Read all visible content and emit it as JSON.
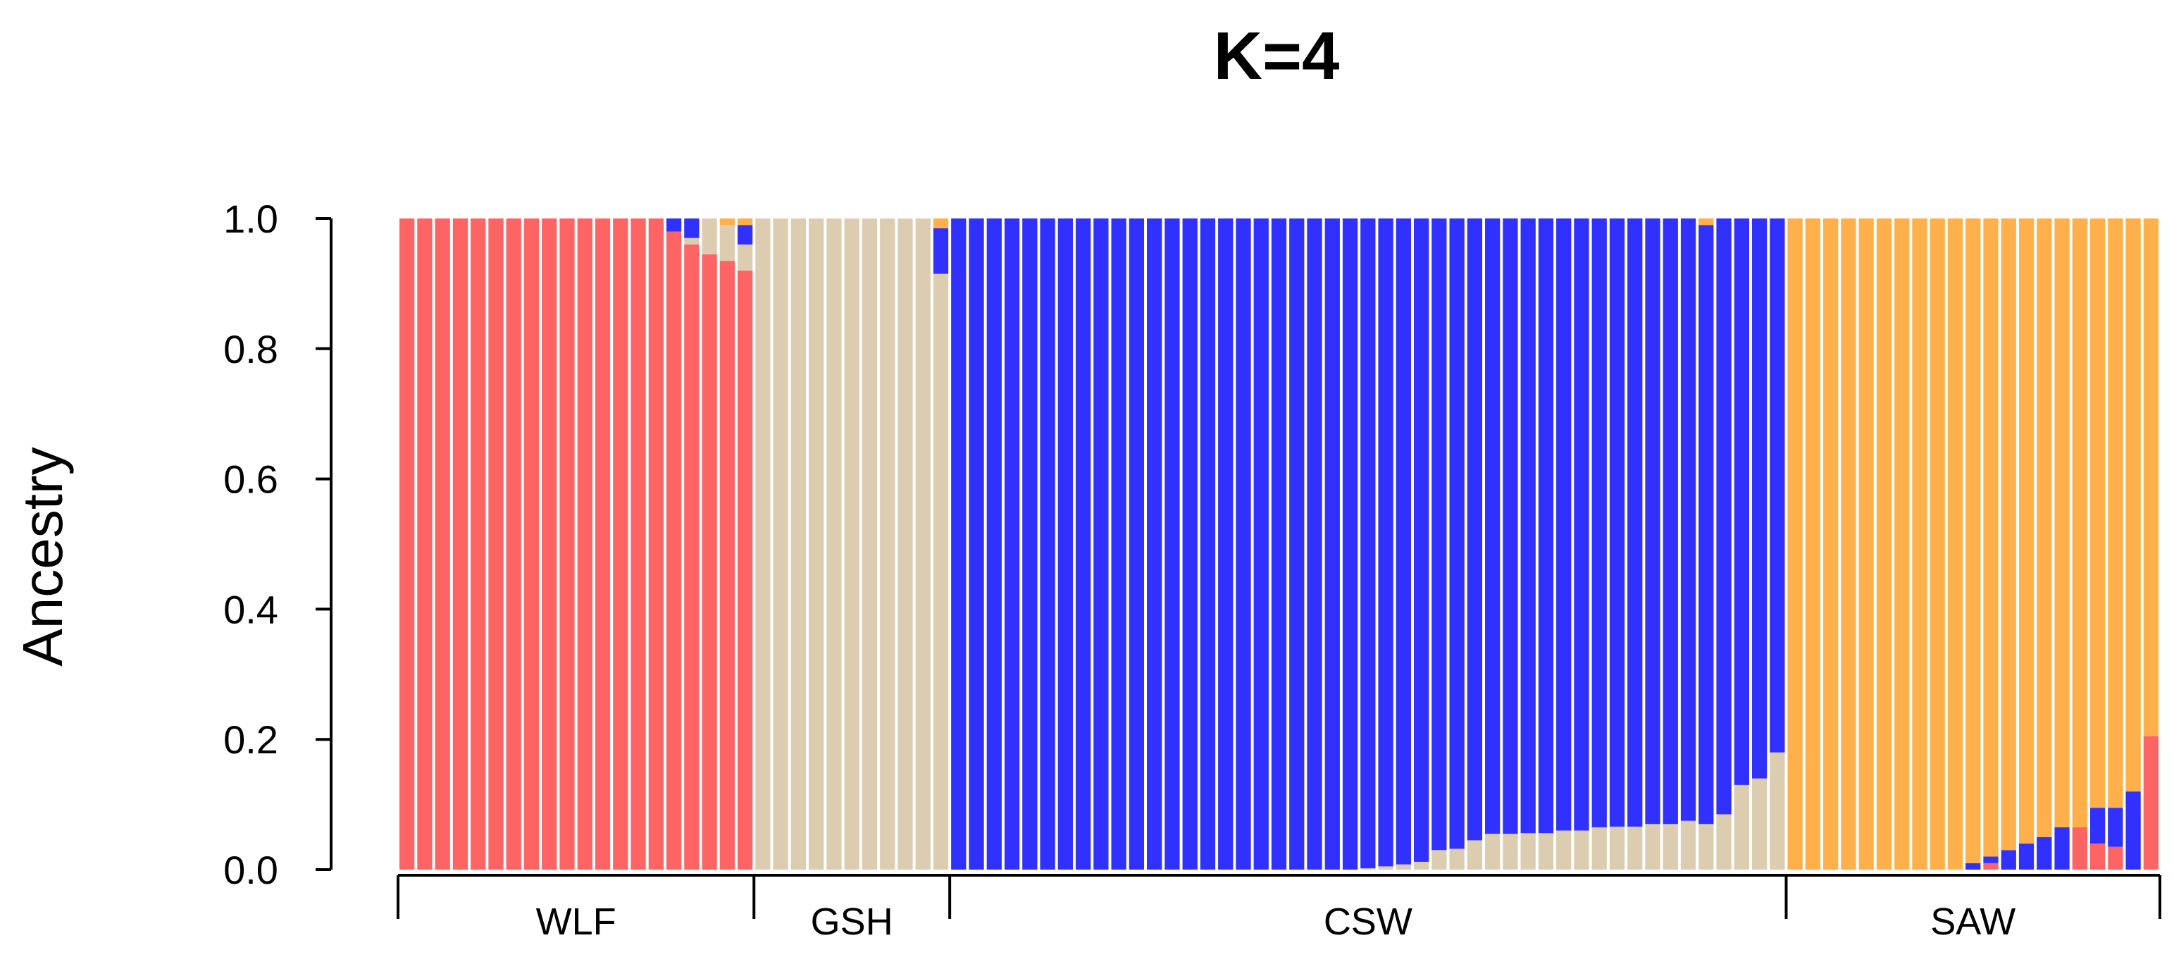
{
  "chart_data": {
    "type": "bar",
    "stacked": true,
    "title": "K=4",
    "xlabel": "",
    "ylabel": "Ancestry",
    "ylim": [
      0,
      1
    ],
    "yticks": [
      "0.0",
      "0.2",
      "0.4",
      "0.6",
      "0.8",
      "1.0"
    ],
    "grid": false,
    "legend": "none",
    "colors": {
      "red": "#FF6464",
      "tan": "#DCCDB1",
      "blue": "#3030FF",
      "orange": "#FFB04A"
    },
    "component_order": [
      "red",
      "tan",
      "blue",
      "orange"
    ],
    "groups": [
      {
        "label": "WLF",
        "individuals": [
          [
            1,
            0,
            0,
            0
          ],
          [
            1,
            0,
            0,
            0
          ],
          [
            1,
            0,
            0,
            0
          ],
          [
            1,
            0,
            0,
            0
          ],
          [
            1,
            0,
            0,
            0
          ],
          [
            1,
            0,
            0,
            0
          ],
          [
            1,
            0,
            0,
            0
          ],
          [
            1,
            0,
            0,
            0
          ],
          [
            1,
            0,
            0,
            0
          ],
          [
            1,
            0,
            0,
            0
          ],
          [
            1,
            0,
            0,
            0
          ],
          [
            1,
            0,
            0,
            0
          ],
          [
            1,
            0,
            0,
            0
          ],
          [
            1,
            0,
            0,
            0
          ],
          [
            1,
            0,
            0,
            0
          ],
          [
            0.98,
            0,
            0.02,
            0
          ],
          [
            0.96,
            0.01,
            0.03,
            0
          ],
          [
            0.945,
            0.055,
            0,
            0
          ],
          [
            0.935,
            0.055,
            0,
            0.01
          ],
          [
            0.92,
            0.04,
            0.03,
            0.01
          ]
        ]
      },
      {
        "label": "GSH",
        "individuals": [
          [
            0,
            1,
            0,
            0
          ],
          [
            0,
            1,
            0,
            0
          ],
          [
            0,
            1,
            0,
            0
          ],
          [
            0,
            1,
            0,
            0
          ],
          [
            0,
            1,
            0,
            0
          ],
          [
            0,
            1,
            0,
            0
          ],
          [
            0,
            1,
            0,
            0
          ],
          [
            0,
            1,
            0,
            0
          ],
          [
            0,
            1,
            0,
            0
          ],
          [
            0,
            1,
            0,
            0
          ],
          [
            0,
            0.915,
            0.07,
            0.015
          ]
        ]
      },
      {
        "label": "CSW",
        "individuals": [
          [
            0,
            0,
            1,
            0
          ],
          [
            0,
            0,
            1,
            0
          ],
          [
            0,
            0,
            1,
            0
          ],
          [
            0,
            0,
            1,
            0
          ],
          [
            0,
            0,
            1,
            0
          ],
          [
            0,
            0,
            1,
            0
          ],
          [
            0,
            0,
            1,
            0
          ],
          [
            0,
            0,
            1,
            0
          ],
          [
            0,
            0,
            1,
            0
          ],
          [
            0,
            0,
            1,
            0
          ],
          [
            0,
            0,
            1,
            0
          ],
          [
            0,
            0,
            1,
            0
          ],
          [
            0,
            0,
            1,
            0
          ],
          [
            0,
            0,
            1,
            0
          ],
          [
            0,
            0,
            1,
            0
          ],
          [
            0,
            0,
            1,
            0
          ],
          [
            0,
            0,
            1,
            0
          ],
          [
            0,
            0,
            1,
            0
          ],
          [
            0,
            0,
            1,
            0
          ],
          [
            0,
            0,
            1,
            0
          ],
          [
            0,
            0,
            1,
            0
          ],
          [
            0,
            0,
            1,
            0
          ],
          [
            0,
            0,
            1,
            0
          ],
          [
            0,
            0.002,
            0.998,
            0
          ],
          [
            0,
            0.005,
            0.995,
            0
          ],
          [
            0,
            0.008,
            0.992,
            0
          ],
          [
            0,
            0.012,
            0.988,
            0
          ],
          [
            0,
            0.03,
            0.97,
            0
          ],
          [
            0,
            0.032,
            0.968,
            0
          ],
          [
            0,
            0.045,
            0.955,
            0
          ],
          [
            0,
            0.055,
            0.945,
            0
          ],
          [
            0,
            0.055,
            0.945,
            0
          ],
          [
            0,
            0.056,
            0.944,
            0
          ],
          [
            0,
            0.056,
            0.944,
            0
          ],
          [
            0,
            0.06,
            0.94,
            0
          ],
          [
            0,
            0.06,
            0.94,
            0
          ],
          [
            0,
            0.065,
            0.935,
            0
          ],
          [
            0,
            0.066,
            0.934,
            0
          ],
          [
            0,
            0.066,
            0.934,
            0
          ],
          [
            0,
            0.07,
            0.93,
            0
          ],
          [
            0,
            0.07,
            0.93,
            0
          ],
          [
            0,
            0.075,
            0.925,
            0
          ],
          [
            0,
            0.07,
            0.92,
            0.01
          ],
          [
            0,
            0.085,
            0.915,
            0
          ],
          [
            0,
            0.13,
            0.87,
            0
          ],
          [
            0,
            0.14,
            0.86,
            0
          ],
          [
            0,
            0.18,
            0.82,
            0
          ]
        ]
      },
      {
        "label": "SAW",
        "individuals": [
          [
            0,
            0,
            0,
            1
          ],
          [
            0,
            0,
            0,
            1
          ],
          [
            0,
            0,
            0,
            1
          ],
          [
            0,
            0,
            0,
            1
          ],
          [
            0,
            0,
            0,
            1
          ],
          [
            0,
            0,
            0,
            1
          ],
          [
            0,
            0,
            0,
            1
          ],
          [
            0,
            0,
            0,
            1
          ],
          [
            0,
            0,
            0,
            1
          ],
          [
            0,
            0,
            0,
            1
          ],
          [
            0,
            0,
            0.01,
            0.99
          ],
          [
            0.01,
            0,
            0.01,
            0.98
          ],
          [
            0,
            0,
            0.03,
            0.97
          ],
          [
            0,
            0,
            0.04,
            0.96
          ],
          [
            0,
            0,
            0.05,
            0.95
          ],
          [
            0,
            0,
            0.065,
            0.935
          ],
          [
            0.065,
            0,
            0,
            0.935
          ],
          [
            0.04,
            0,
            0.055,
            0.905
          ],
          [
            0.035,
            0,
            0.06,
            0.905
          ],
          [
            0,
            0,
            0.12,
            0.88
          ],
          [
            0.205,
            0,
            0,
            0.795
          ]
        ]
      }
    ]
  }
}
